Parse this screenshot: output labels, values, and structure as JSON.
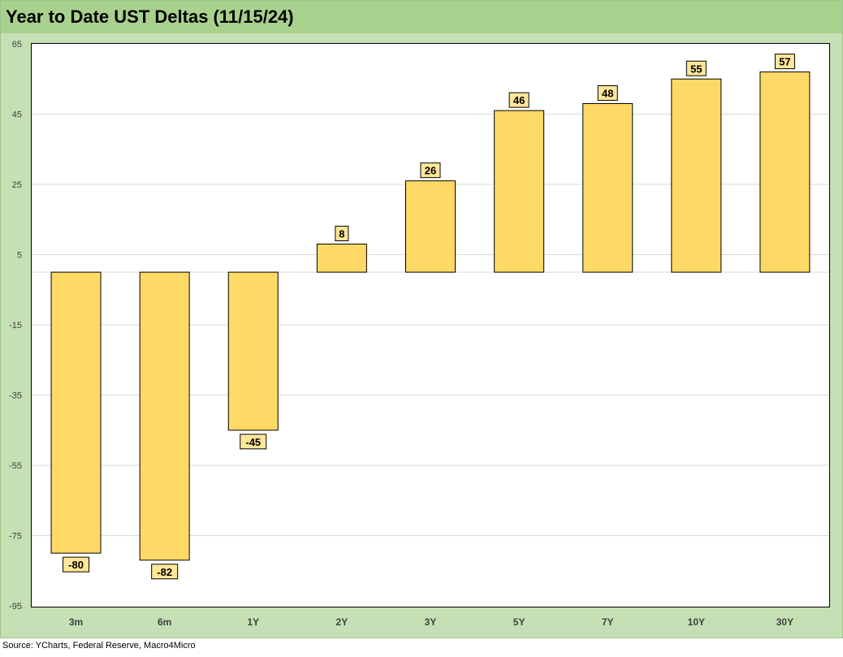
{
  "chart_data": {
    "type": "bar",
    "title": "Year to Date UST Deltas (11/15/24)",
    "categories": [
      "3m",
      "6m",
      "1Y",
      "2Y",
      "3Y",
      "5Y",
      "7Y",
      "10Y",
      "30Y"
    ],
    "values": [
      -80,
      -82,
      -45,
      8,
      26,
      46,
      48,
      55,
      57
    ],
    "ylim": [
      -95,
      65
    ],
    "yticks": [
      -95,
      -75,
      -55,
      -35,
      -15,
      5,
      25,
      45,
      65
    ],
    "grid": true,
    "legend": "none",
    "bar_color": "#ffd966",
    "label_bg": "#ffe699",
    "source": "Source: YCharts, Federal Reserve, Macro4Micro"
  }
}
